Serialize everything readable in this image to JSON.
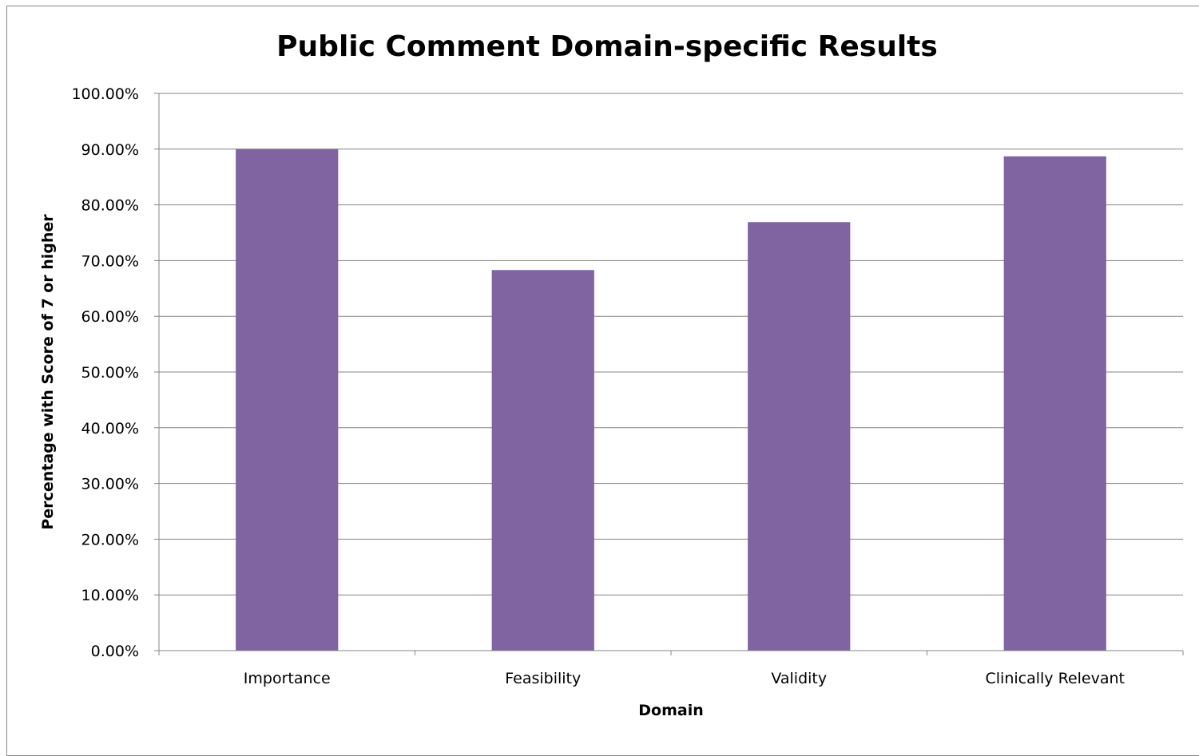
{
  "chart_data": {
    "type": "bar",
    "title": "Public Comment Domain-specific Results",
    "xlabel": "Domain",
    "ylabel": "Percentage with Score of 7 or higher",
    "categories": [
      "Importance",
      "Feasibility",
      "Validity",
      "Clinically Relevant"
    ],
    "values": [
      90.0,
      68.3,
      76.9,
      88.7
    ],
    "ylim": [
      0,
      100
    ],
    "yticks": [
      0,
      10,
      20,
      30,
      40,
      50,
      60,
      70,
      80,
      90,
      100
    ],
    "ytick_labels": [
      "0.00%",
      "10.00%",
      "20.00%",
      "30.00%",
      "40.00%",
      "50.00%",
      "60.00%",
      "70.00%",
      "80.00%",
      "90.00%",
      "100.00%"
    ],
    "grid": true,
    "legend": "none",
    "bar_color": "#8064A2",
    "grid_color": "#868686"
  }
}
